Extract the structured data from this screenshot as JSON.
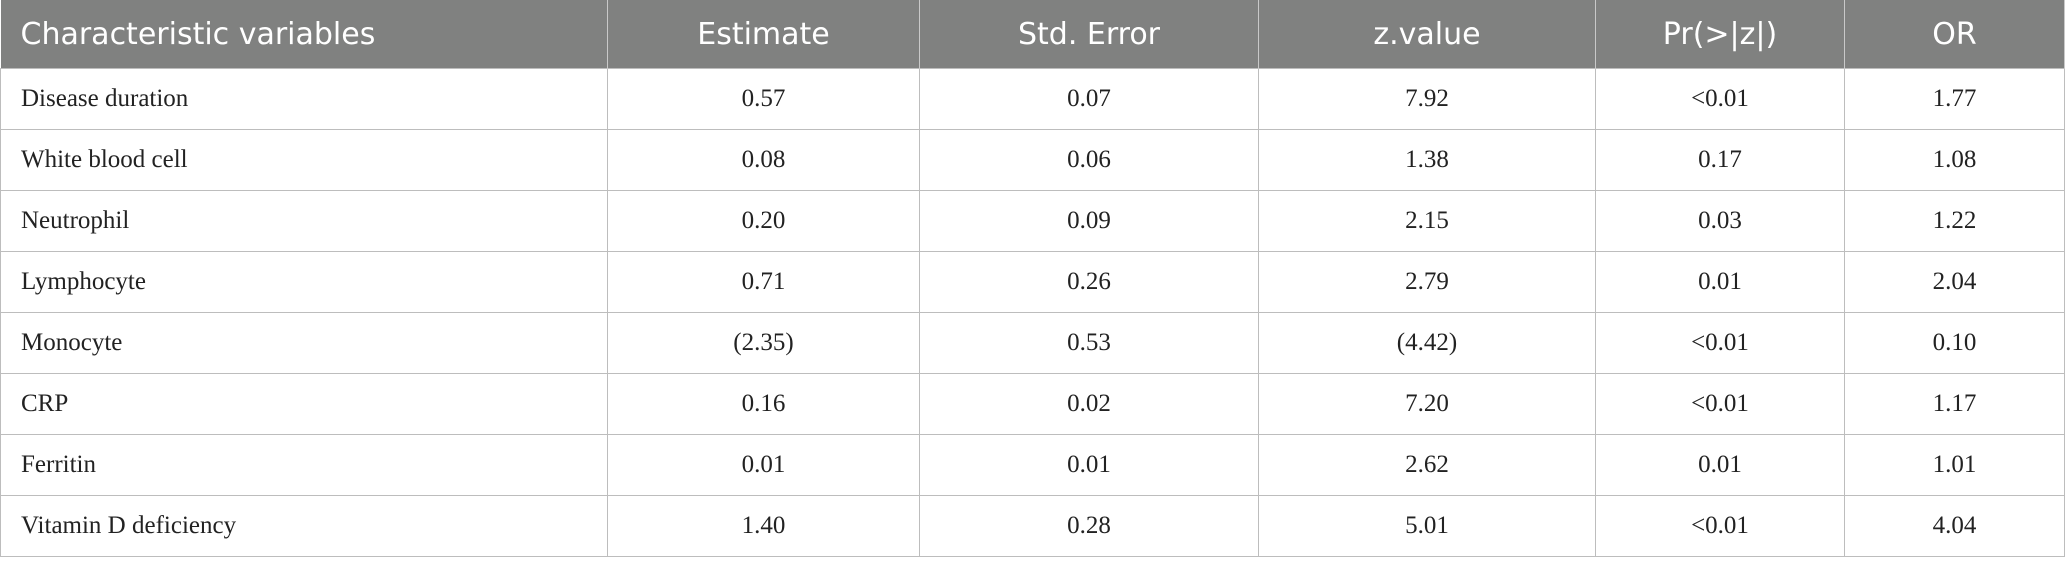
{
  "table": {
    "columns": [
      "Characteristic variables",
      "Estimate",
      "Std. Error",
      "z.value",
      "Pr(>|z|)",
      "OR"
    ],
    "rows": [
      [
        "Disease duration",
        "0.57",
        "0.07",
        "7.92",
        "<0.01",
        "1.77"
      ],
      [
        "White blood cell",
        "0.08",
        "0.06",
        "1.38",
        "0.17",
        "1.08"
      ],
      [
        "Neutrophil",
        "0.20",
        "0.09",
        "2.15",
        "0.03",
        "1.22"
      ],
      [
        "Lymphocyte",
        "0.71",
        "0.26",
        "2.79",
        "0.01",
        "2.04"
      ],
      [
        "Monocyte",
        "(2.35)",
        "0.53",
        "(4.42)",
        "<0.01",
        "0.10"
      ],
      [
        "CRP",
        "0.16",
        "0.02",
        "7.20",
        "<0.01",
        "1.17"
      ],
      [
        "Ferritin",
        "0.01",
        "0.01",
        "2.62",
        "0.01",
        "1.01"
      ],
      [
        "Vitamin D deficiency",
        "1.40",
        "0.28",
        "5.01",
        "<0.01",
        "4.04"
      ]
    ]
  }
}
